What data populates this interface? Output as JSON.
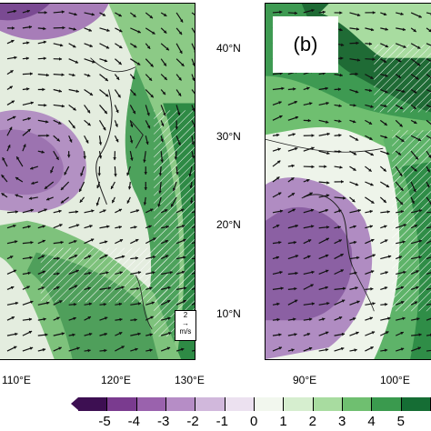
{
  "panel_b_label": "(b)",
  "panel_b_lat_labels": [
    "40°N",
    "30°N",
    "20°N",
    "10°N"
  ],
  "panel_a_lon_labels": [
    "110°E",
    "120°E",
    "130°E"
  ],
  "panel_b_lon_labels": [
    "90°E",
    "100°E"
  ],
  "reference_vector": {
    "value": "2",
    "unit": "m/s"
  },
  "colorbar": {
    "ticks": [
      "-5",
      "-4",
      "-3",
      "-2",
      "-1",
      "0",
      "1",
      "2",
      "3",
      "4",
      "5"
    ],
    "colors": [
      "#3d0f52",
      "#7a3b8f",
      "#9a62ad",
      "#b68dc6",
      "#d1b8dc",
      "#ece1f0",
      "#f2f7ee",
      "#d6eecf",
      "#a8dca0",
      "#6fbf70",
      "#3a9a4e",
      "#156d34"
    ]
  }
}
